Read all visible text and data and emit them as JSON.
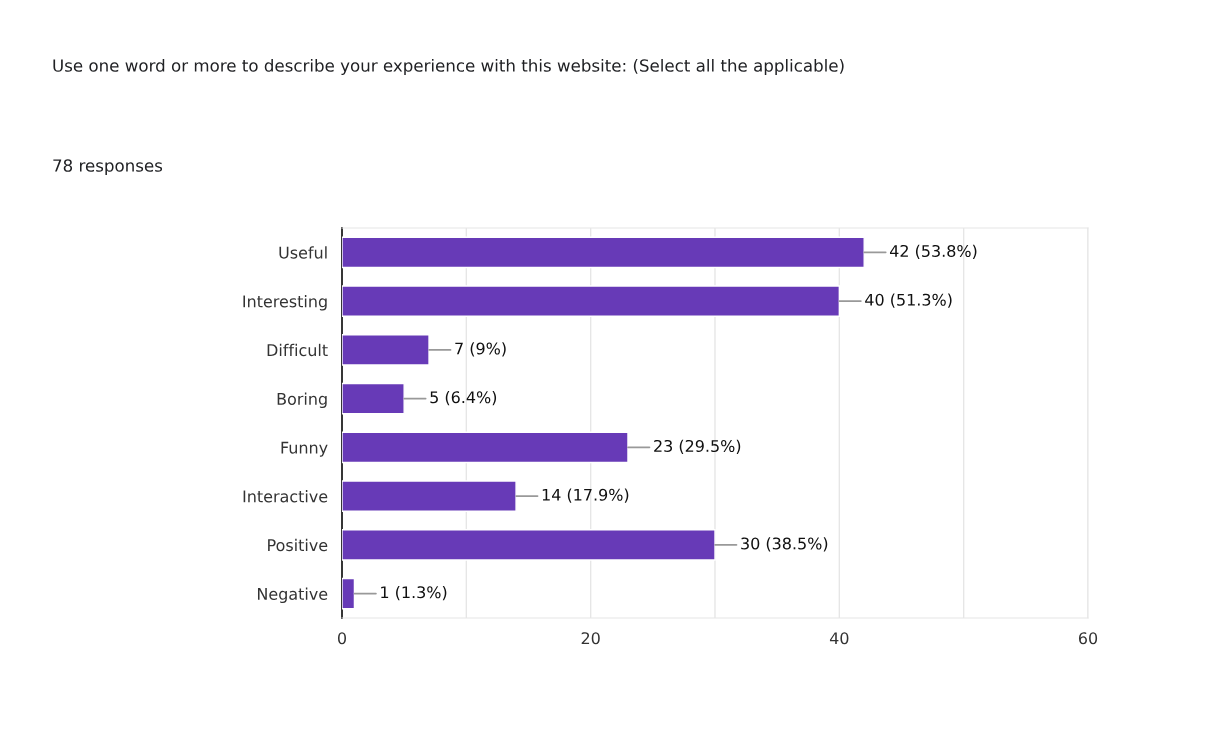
{
  "chart_data": {
    "type": "bar",
    "orientation": "horizontal",
    "title": "Use one word or more to describe your experience with this website: (Select all the applicable)",
    "subtitle": "78 responses",
    "categories": [
      "Useful",
      "Interesting",
      "Difficult",
      "Boring",
      "Funny",
      "Interactive",
      "Positive",
      "Negative"
    ],
    "values": [
      42,
      40,
      7,
      5,
      23,
      14,
      30,
      1
    ],
    "value_labels": [
      "42 (53.8%)",
      "40 (51.3%)",
      "7 (9%)",
      "5 (6.4%)",
      "23 (29.5%)",
      "14 (17.9%)",
      "30 (38.5%)",
      "1 (1.3%)"
    ],
    "color": "#673ab7",
    "xlim": [
      0,
      60
    ],
    "xticks": [
      0,
      {
        "value": 10,
        "label": null
      },
      20,
      {
        "value": 30,
        "label": null
      },
      40,
      {
        "value": 50,
        "label": null
      },
      60
    ],
    "grid": "x",
    "legend": false
  }
}
